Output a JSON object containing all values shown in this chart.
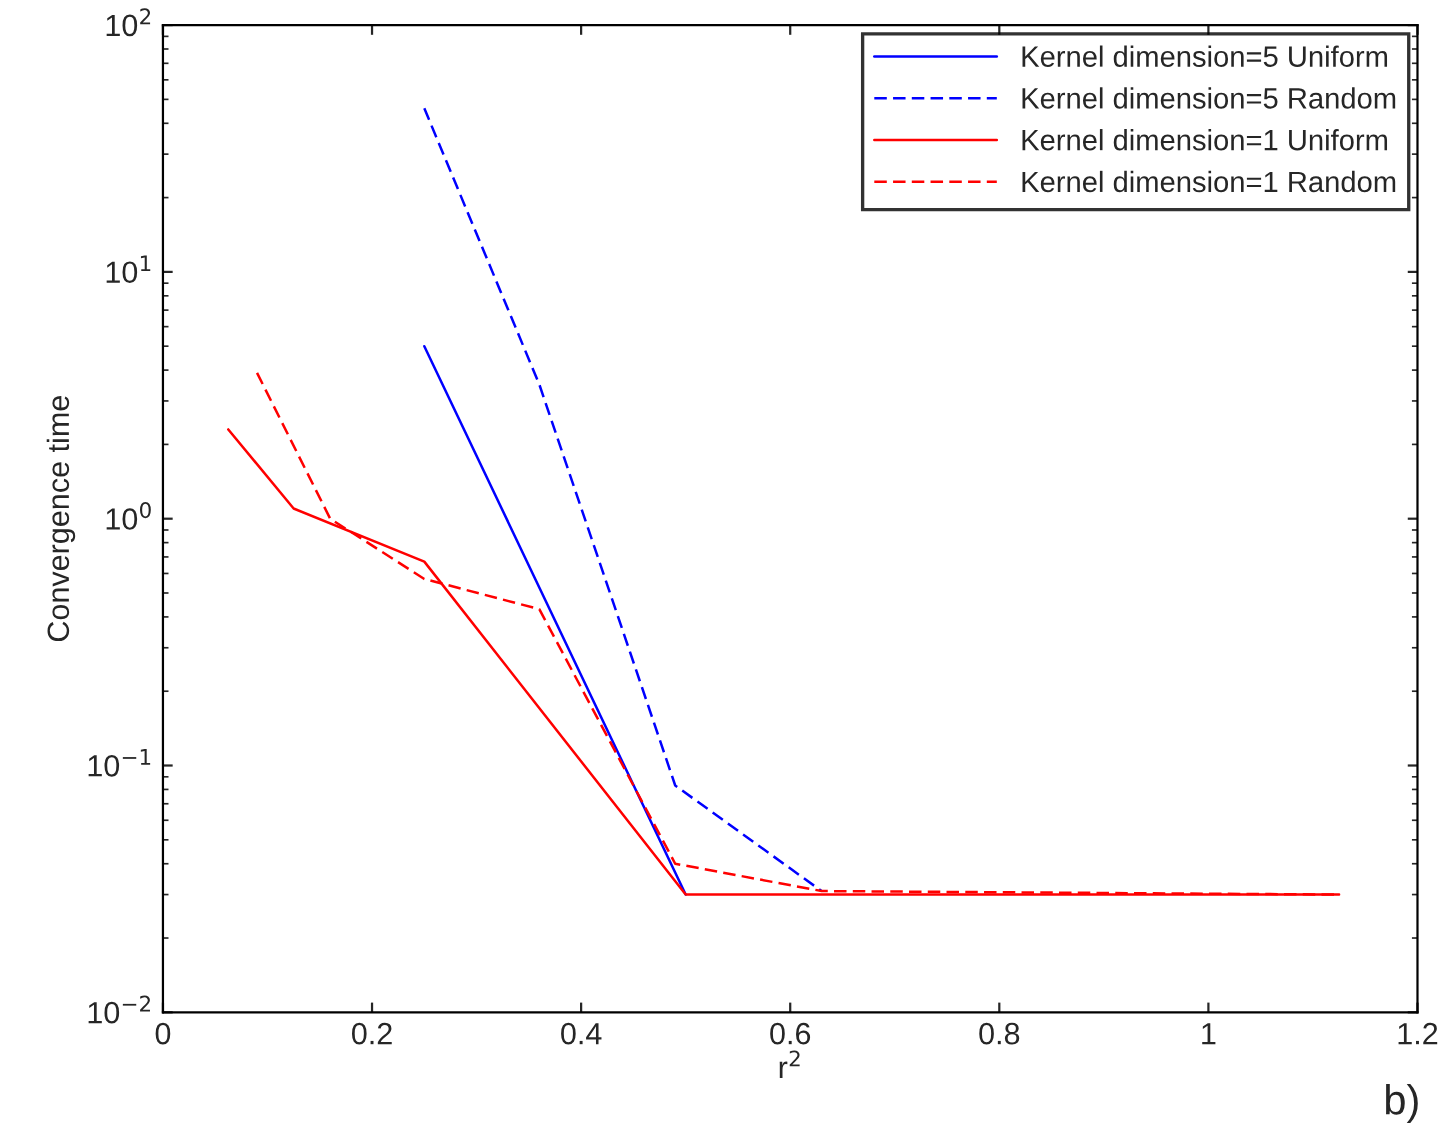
{
  "chart_data": {
    "type": "line",
    "xlabel": "r$^{2}$",
    "ylabel": "Convergence time",
    "log": "y",
    "grid": false,
    "legend": "top right",
    "xlim": [
      0,
      1.2
    ],
    "xticks": [
      0,
      0.2,
      0.4,
      0.6,
      0.8,
      1,
      1.2
    ],
    "ylim": [
      0.01,
      100
    ],
    "yticks": [
      {
        "value": 0.01,
        "label": "10$^{−2}$"
      },
      {
        "value": 0.1,
        "label": "10$^{−1}$"
      },
      {
        "value": 1,
        "label": "10$^{0}$"
      },
      {
        "value": 10,
        "label": "10$^{1}$"
      },
      {
        "value": 100,
        "label": "10$^{2}$"
      }
    ],
    "annotations": [
      "b)"
    ],
    "series": [
      {
        "name": "Kernel dimension=5 Uniform",
        "color": "#0000ff",
        "line_style": "solid",
        "x": [
          0.25,
          0.5
        ],
        "values": [
          5.0,
          0.03
        ]
      },
      {
        "name": "Kernel dimension=5 Random",
        "color": "#0000ff",
        "line_style": "dashed",
        "x": [
          0.25,
          0.36,
          0.49,
          0.63
        ],
        "values": [
          46,
          3.5,
          0.083,
          0.031
        ]
      },
      {
        "name": "Kernel dimension=1 Uniform",
        "color": "#ff0000",
        "line_style": "solid",
        "x": [
          0.0625,
          0.125,
          0.25,
          0.5,
          1.125
        ],
        "values": [
          2.3,
          1.1,
          0.67,
          0.03,
          0.03
        ]
      },
      {
        "name": "Kernel dimension=1 Random",
        "color": "#ff0000",
        "line_style": "dashed",
        "x": [
          0.09,
          0.16,
          0.25,
          0.36,
          0.49,
          0.63,
          1.125
        ],
        "values": [
          3.9,
          1.0,
          0.57,
          0.43,
          0.04,
          0.031,
          0.03
        ]
      }
    ]
  }
}
